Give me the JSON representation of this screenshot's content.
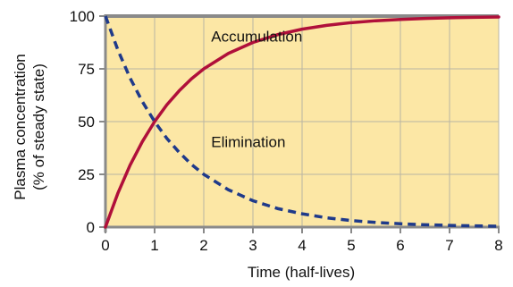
{
  "chart_data": {
    "type": "line",
    "title": "",
    "xlabel": "Time (half-lives)",
    "ylabel": [
      "Plasma concentration",
      "(% of steady state)"
    ],
    "xlim": [
      0,
      8
    ],
    "ylim": [
      0,
      100
    ],
    "x_ticks": [
      0,
      1,
      2,
      3,
      4,
      5,
      6,
      7,
      8
    ],
    "x_tick_labels": [
      "0",
      "1",
      "2",
      "3",
      "4",
      "5",
      "6",
      "7",
      "8"
    ],
    "y_ticks": [
      0,
      25,
      50,
      75,
      100
    ],
    "y_tick_labels": [
      "0",
      "25",
      "50",
      "75",
      "100"
    ],
    "grid": true,
    "background_color": "#FCE7A5",
    "grid_color": "#B9B4A4",
    "axis_color": "#8A8A8A",
    "series": [
      {
        "name": "Accumulation",
        "style": "solid",
        "color": "#B0103A",
        "x": [
          0,
          0.25,
          0.5,
          0.75,
          1,
          1.25,
          1.5,
          1.75,
          2,
          2.5,
          3,
          3.5,
          4,
          4.5,
          5,
          5.5,
          6,
          6.5,
          7,
          7.5,
          8
        ],
        "y": [
          0,
          15.9,
          29.3,
          40.5,
          50,
          58,
          64.6,
          70.3,
          75,
          82.3,
          87.5,
          91.2,
          93.8,
          95.6,
          96.9,
          97.8,
          98.4,
          98.9,
          99.2,
          99.4,
          99.6
        ]
      },
      {
        "name": "Elimination",
        "style": "dashed",
        "color": "#1F3A8A",
        "x": [
          0,
          0.25,
          0.5,
          0.75,
          1,
          1.25,
          1.5,
          1.75,
          2,
          2.5,
          3,
          3.5,
          4,
          4.5,
          5,
          5.5,
          6,
          6.5,
          7,
          7.5,
          8
        ],
        "y": [
          100,
          84.1,
          70.7,
          59.5,
          50,
          42,
          35.4,
          29.7,
          25,
          17.7,
          12.5,
          8.8,
          6.3,
          4.4,
          3.1,
          2.2,
          1.6,
          1.1,
          0.8,
          0.6,
          0.4
        ]
      }
    ],
    "annotations": [
      {
        "text": "Accumulation",
        "x": 2.15,
        "y": 88
      },
      {
        "text": "Elimination",
        "x": 2.15,
        "y": 38
      }
    ]
  }
}
